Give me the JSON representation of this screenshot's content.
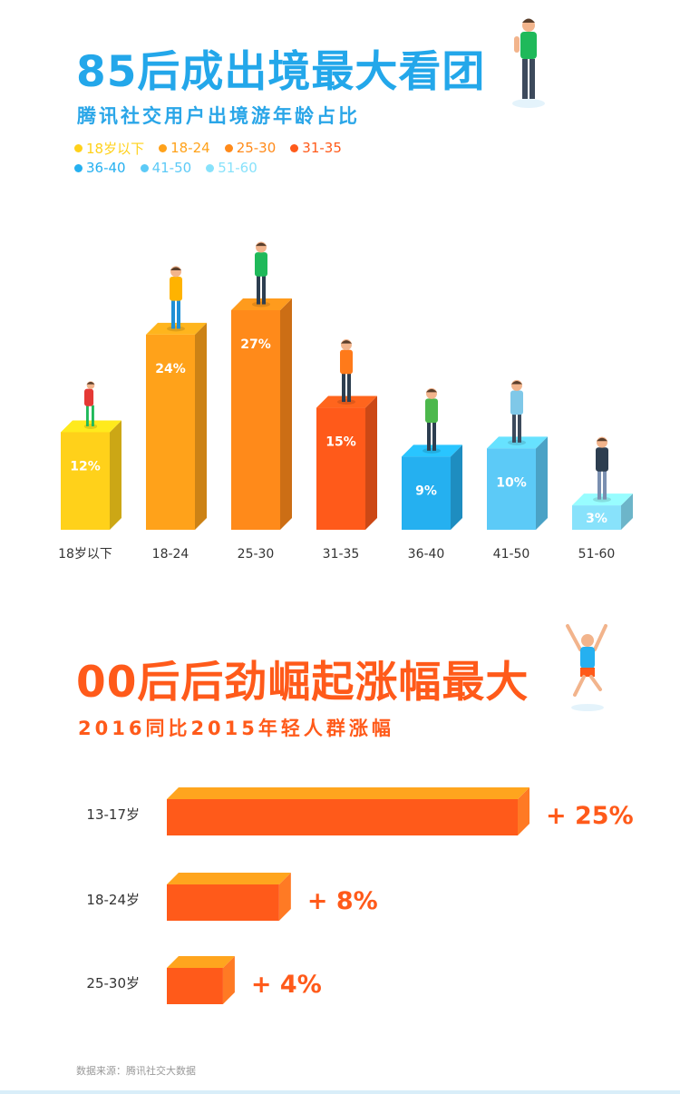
{
  "section1": {
    "title": "85后成出境最大看团",
    "subtitle": "腾讯社交用户出境游年龄占比"
  },
  "section2": {
    "title": "00后后劲崛起涨幅最大",
    "subtitle": "2016同比2015年轻人群涨幅"
  },
  "source": "数据来源：腾讯社交大数据",
  "chart_data": [
    {
      "type": "bar",
      "categories": [
        "18岁以下",
        "18-24",
        "25-30",
        "31-35",
        "36-40",
        "41-50",
        "51-60"
      ],
      "values": [
        12,
        24,
        27,
        15,
        9,
        10,
        3
      ],
      "value_labels": [
        "12%",
        "24%",
        "27%",
        "15%",
        "9%",
        "10%",
        "3%"
      ],
      "legend": [
        {
          "label": "18岁以下",
          "color": "#ffd11a"
        },
        {
          "label": "18-24",
          "color": "#ffa21a"
        },
        {
          "label": "25-30",
          "color": "#ff8a1a"
        },
        {
          "label": "31-35",
          "color": "#ff5a1a"
        },
        {
          "label": "36-40",
          "color": "#25b0f0"
        },
        {
          "label": "41-50",
          "color": "#5ccaf7"
        },
        {
          "label": "51-60",
          "color": "#88e2fb"
        }
      ],
      "colors": [
        "#ffd11a",
        "#ffa21a",
        "#ff8a1a",
        "#ff5a1a",
        "#25b0f0",
        "#5ccaf7",
        "#88e2fb"
      ],
      "legend_position": "top-left",
      "grid": false
    },
    {
      "type": "bar",
      "orientation": "horizontal",
      "categories": [
        "13-17岁",
        "18-24岁",
        "25-30岁"
      ],
      "values": [
        25,
        8,
        4
      ],
      "value_labels": [
        "+ 25%",
        "+ 8%",
        "+ 4%"
      ],
      "color": "#ff5a1a",
      "grid": false
    }
  ]
}
